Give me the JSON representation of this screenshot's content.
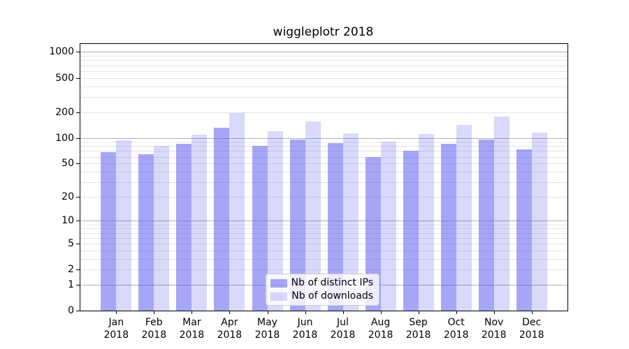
{
  "figure": {
    "title": "wiggleplotr 2018",
    "background_color": "#ffffff"
  },
  "legend": {
    "position": "lower center",
    "items": [
      {
        "label": "Nb of distinct IPs",
        "color": "rgba(77,77,240,0.5)"
      },
      {
        "label": "Nb of downloads",
        "color": "rgba(77,77,240,0.21)"
      }
    ]
  },
  "chart_data": {
    "type": "bar",
    "title": "wiggleplotr 2018",
    "categories": [
      "Jan 2018",
      "Feb 2018",
      "Mar 2018",
      "Apr 2018",
      "May 2018",
      "Jun 2018",
      "Jul 2018",
      "Aug 2018",
      "Sep 2018",
      "Oct 2018",
      "Nov 2018",
      "Dec 2018"
    ],
    "x_tick_months": [
      "Jan",
      "Feb",
      "Mar",
      "Apr",
      "May",
      "Jun",
      "Jul",
      "Aug",
      "Sep",
      "Oct",
      "Nov",
      "Dec"
    ],
    "x_tick_year": "2018",
    "series": [
      {
        "name": "Nb of distinct IPs",
        "color": "rgba(77,77,240,0.5)",
        "values": [
          68,
          64,
          86,
          132,
          80,
          95,
          87,
          60,
          71,
          86,
          95,
          73
        ]
      },
      {
        "name": "Nb of downloads",
        "color": "rgba(77,77,240,0.21)",
        "values": [
          93,
          81,
          109,
          195,
          120,
          155,
          112,
          91,
          110,
          142,
          178,
          115
        ]
      }
    ],
    "xlabel": "",
    "ylabel": "",
    "yscale": "log1p",
    "y_ticks": [
      0,
      1,
      2,
      5,
      10,
      20,
      50,
      100,
      200,
      500,
      1000
    ],
    "y_major_gridline_values": [
      1,
      10,
      100,
      1000
    ],
    "grid": "horizontal major+minor",
    "legend_position": "lower center",
    "colors": {
      "major_grid": "#b0b0b0",
      "minor_grid": "#e4e4e4",
      "spine": "#000000"
    }
  }
}
